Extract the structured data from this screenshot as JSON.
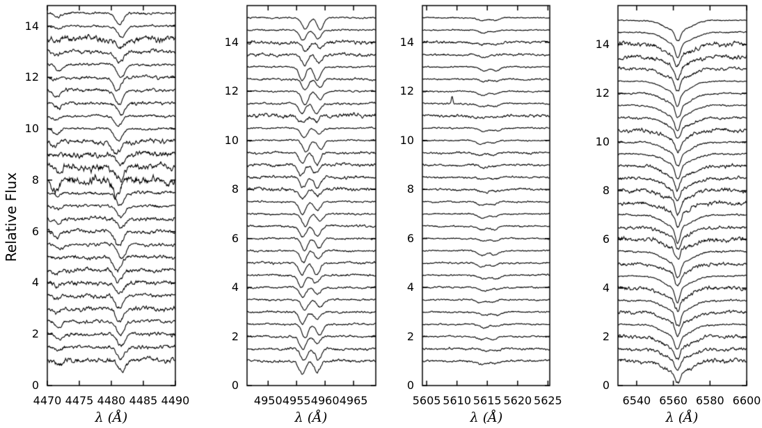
{
  "chart_data": {
    "type": "line",
    "title": "",
    "ylabel": "Relative Flux",
    "background": "#ffffff",
    "line_color": "#000000",
    "grid": false,
    "legend": "none",
    "description": "Four panels of vertically offset normalized stellar spectra (relative flux vs wavelength in Angstroms)",
    "panels": [
      {
        "xlabel": "λ (Å)",
        "xlim": [
          4470,
          4490
        ],
        "xticks": [
          4470,
          4475,
          4480,
          4485,
          4490
        ],
        "ylim": [
          0,
          14.8
        ],
        "yticks": [
          0,
          2,
          4,
          6,
          8,
          10,
          12,
          14
        ],
        "kind": "lines",
        "shift_scale": 0.9,
        "lines": [
          {
            "c": 4481.2,
            "w": 0.6,
            "rel": 1.0
          },
          {
            "c": 4471.5,
            "w": 0.5,
            "rel": 0.35
          }
        ],
        "spectra": [
          {
            "o": 14.5,
            "n": 0.03,
            "d": 0.4
          },
          {
            "o": 14.0,
            "n": 0.028,
            "d": 0.45
          },
          {
            "o": 13.5,
            "n": 0.085,
            "d": 0.35
          },
          {
            "o": 13.0,
            "n": 0.055,
            "d": 0.4
          },
          {
            "o": 12.5,
            "n": 0.035,
            "d": 0.5
          },
          {
            "o": 12.0,
            "n": 0.045,
            "d": 0.55
          },
          {
            "o": 11.5,
            "n": 0.045,
            "d": 0.55
          },
          {
            "o": 11.0,
            "n": 0.05,
            "d": 0.45
          },
          {
            "o": 10.5,
            "n": 0.032,
            "d": 0.4
          },
          {
            "o": 10.0,
            "n": 0.032,
            "d": 0.45
          },
          {
            "o": 9.5,
            "n": 0.065,
            "d": 0.45
          },
          {
            "o": 9.0,
            "n": 0.08,
            "d": 0.4
          },
          {
            "o": 8.5,
            "n": 0.095,
            "d": 0.45
          },
          {
            "o": 8.0,
            "n": 0.12,
            "d": 0.65
          },
          {
            "o": 7.5,
            "n": 0.045,
            "d": 0.5
          },
          {
            "o": 7.0,
            "n": 0.038,
            "d": 0.45
          },
          {
            "o": 6.5,
            "n": 0.055,
            "d": 0.4
          },
          {
            "o": 6.0,
            "n": 0.055,
            "d": 0.5
          },
          {
            "o": 5.5,
            "n": 0.045,
            "d": 0.55
          },
          {
            "o": 5.0,
            "n": 0.055,
            "d": 0.5
          },
          {
            "o": 4.5,
            "n": 0.06,
            "d": 0.5
          },
          {
            "o": 4.0,
            "n": 0.06,
            "d": 0.45
          },
          {
            "o": 3.5,
            "n": 0.055,
            "d": 0.5
          },
          {
            "o": 3.0,
            "n": 0.06,
            "d": 0.55
          },
          {
            "o": 2.5,
            "n": 0.045,
            "d": 0.55
          },
          {
            "o": 2.0,
            "n": 0.045,
            "d": 0.45
          },
          {
            "o": 1.5,
            "n": 0.05,
            "d": 0.45
          },
          {
            "o": 1.0,
            "n": 0.07,
            "d": 0.5
          }
        ]
      },
      {
        "xlabel": "λ (Å)",
        "xlim": [
          4946.3,
          4968.9
        ],
        "xticks": [
          4950,
          4955,
          4960,
          4965
        ],
        "ylim": [
          0,
          15.5
        ],
        "yticks": [
          0,
          2,
          4,
          6,
          8,
          10,
          12,
          14
        ],
        "kind": "lines",
        "shift_scale": 0.9,
        "lines": [
          {
            "c": 4956.2,
            "w": 0.55,
            "rel": 1.0
          },
          {
            "c": 4958.8,
            "w": 0.55,
            "rel": 0.8
          }
        ],
        "spectra": [
          {
            "o": 15.0,
            "n": 0.02,
            "d": 0.45
          },
          {
            "o": 14.5,
            "n": 0.02,
            "d": 0.4
          },
          {
            "o": 14.0,
            "n": 0.05,
            "d": 0.35
          },
          {
            "o": 13.5,
            "n": 0.045,
            "d": 0.4
          },
          {
            "o": 13.0,
            "n": 0.022,
            "d": 0.55
          },
          {
            "o": 12.5,
            "n": 0.03,
            "d": 0.45
          },
          {
            "o": 12.0,
            "n": 0.022,
            "d": 0.55
          },
          {
            "o": 11.5,
            "n": 0.03,
            "d": 0.4
          },
          {
            "o": 11.0,
            "n": 0.06,
            "d": 0.25
          },
          {
            "o": 10.5,
            "n": 0.022,
            "d": 0.4
          },
          {
            "o": 10.0,
            "n": 0.022,
            "d": 0.45
          },
          {
            "o": 9.5,
            "n": 0.035,
            "d": 0.45
          },
          {
            "o": 9.0,
            "n": 0.045,
            "d": 0.4
          },
          {
            "o": 8.5,
            "n": 0.04,
            "d": 0.45
          },
          {
            "o": 8.0,
            "n": 0.05,
            "d": 0.35
          },
          {
            "o": 7.5,
            "n": 0.025,
            "d": 0.5
          },
          {
            "o": 7.0,
            "n": 0.025,
            "d": 0.5
          },
          {
            "o": 6.5,
            "n": 0.03,
            "d": 0.45
          },
          {
            "o": 6.0,
            "n": 0.025,
            "d": 0.5
          },
          {
            "o": 5.5,
            "n": 0.025,
            "d": 0.5
          },
          {
            "o": 5.0,
            "n": 0.03,
            "d": 0.45
          },
          {
            "o": 4.5,
            "n": 0.03,
            "d": 0.5
          },
          {
            "o": 4.0,
            "n": 0.028,
            "d": 0.4
          },
          {
            "o": 3.5,
            "n": 0.028,
            "d": 0.4
          },
          {
            "o": 3.0,
            "n": 0.03,
            "d": 0.5
          },
          {
            "o": 2.5,
            "n": 0.025,
            "d": 0.55
          },
          {
            "o": 2.0,
            "n": 0.03,
            "d": 0.5
          },
          {
            "o": 1.5,
            "n": 0.035,
            "d": 0.5
          },
          {
            "o": 1.0,
            "n": 0.04,
            "d": 0.5
          }
        ]
      },
      {
        "xlabel": "λ (Å)",
        "xlim": [
          5604.3,
          5625.3
        ],
        "xticks": [
          5605,
          5610,
          5615,
          5620,
          5625
        ],
        "ylim": [
          0,
          15.5
        ],
        "yticks": [
          0,
          2,
          4,
          6,
          8,
          10,
          12,
          14
        ],
        "kind": "lines",
        "shift_scale": 0.9,
        "lines": [
          {
            "c": 5614.2,
            "w": 0.7,
            "rel": 1.0
          },
          {
            "c": 5616.2,
            "w": 0.6,
            "rel": 0.7
          }
        ],
        "spectra": [
          {
            "o": 15.0,
            "n": 0.015,
            "d": 0.12
          },
          {
            "o": 14.5,
            "n": 0.015,
            "d": 0.12
          },
          {
            "o": 14.0,
            "n": 0.035,
            "d": 0.1
          },
          {
            "o": 13.5,
            "n": 0.03,
            "d": 0.1
          },
          {
            "o": 13.0,
            "n": 0.018,
            "d": 0.18
          },
          {
            "o": 12.5,
            "n": 0.022,
            "d": 0.12
          },
          {
            "o": 12.0,
            "n": 0.018,
            "d": 0.18
          },
          {
            "o": 11.5,
            "n": 0.022,
            "d": 0.12,
            "spike": {
              "c": 5609.2,
              "h": 0.3,
              "w": 0.13
            }
          },
          {
            "o": 11.0,
            "n": 0.04,
            "d": 0.08
          },
          {
            "o": 10.5,
            "n": 0.02,
            "d": 0.12
          },
          {
            "o": 10.0,
            "n": 0.018,
            "d": 0.15
          },
          {
            "o": 9.5,
            "n": 0.028,
            "d": 0.12
          },
          {
            "o": 9.0,
            "n": 0.03,
            "d": 0.1
          },
          {
            "o": 8.5,
            "n": 0.025,
            "d": 0.12
          },
          {
            "o": 8.0,
            "n": 0.03,
            "d": 0.12
          },
          {
            "o": 7.5,
            "n": 0.02,
            "d": 0.15
          },
          {
            "o": 7.0,
            "n": 0.018,
            "d": 0.15
          },
          {
            "o": 6.5,
            "n": 0.02,
            "d": 0.15
          },
          {
            "o": 6.0,
            "n": 0.018,
            "d": 0.12
          },
          {
            "o": 5.5,
            "n": 0.018,
            "d": 0.18
          },
          {
            "o": 5.0,
            "n": 0.02,
            "d": 0.15
          },
          {
            "o": 4.5,
            "n": 0.022,
            "d": 0.15
          },
          {
            "o": 4.0,
            "n": 0.022,
            "d": 0.12
          },
          {
            "o": 3.5,
            "n": 0.02,
            "d": 0.12
          },
          {
            "o": 3.0,
            "n": 0.022,
            "d": 0.15
          },
          {
            "o": 2.5,
            "n": 0.02,
            "d": 0.15
          },
          {
            "o": 2.0,
            "n": 0.022,
            "d": 0.12
          },
          {
            "o": 1.5,
            "n": 0.03,
            "d": 0.1
          },
          {
            "o": 1.0,
            "n": 0.03,
            "d": 0.15
          }
        ]
      },
      {
        "xlabel": "λ (Å)",
        "xlim": [
          6529.8,
          6600
        ],
        "xticks": [
          6540,
          6560,
          6580,
          6600
        ],
        "ylim": [
          0,
          15.6
        ],
        "yticks": [
          0,
          2,
          4,
          6,
          8,
          10,
          12,
          14
        ],
        "kind": "halpha",
        "shift_scale": 0.5,
        "line_center": 6562.3,
        "broad_width": 7,
        "core_width": 1.3,
        "em_width": 0.55,
        "spectra": [
          {
            "o": 15.0,
            "n": 0.018,
            "d": 0.5,
            "b": 0.45,
            "e": 0.12
          },
          {
            "o": 14.5,
            "n": 0.018,
            "d": 0.55,
            "b": 0.5,
            "e": 0
          },
          {
            "o": 14.0,
            "n": 0.065,
            "d": 0.5,
            "b": 0.45,
            "e": 0.1
          },
          {
            "o": 13.5,
            "n": 0.06,
            "d": 0.6,
            "b": 0.45,
            "e": 0.15
          },
          {
            "o": 13.0,
            "n": 0.045,
            "d": 0.6,
            "b": 0.4,
            "e": 0.12
          },
          {
            "o": 12.5,
            "n": 0.018,
            "d": 0.55,
            "b": 0.5,
            "e": 0
          },
          {
            "o": 12.0,
            "n": 0.025,
            "d": 0.6,
            "b": 0.5,
            "e": 0.12
          },
          {
            "o": 11.5,
            "n": 0.022,
            "d": 0.55,
            "b": 0.5,
            "e": 0
          },
          {
            "o": 11.0,
            "n": 0.035,
            "d": 0.55,
            "b": 0.45,
            "e": 0.12
          },
          {
            "o": 10.5,
            "n": 0.06,
            "d": 0.5,
            "b": 0.45,
            "e": 0
          },
          {
            "o": 10.0,
            "n": 0.025,
            "d": 0.6,
            "b": 0.5,
            "e": 0.12
          },
          {
            "o": 9.5,
            "n": 0.025,
            "d": 0.65,
            "b": 0.45,
            "e": 0.12
          },
          {
            "o": 9.0,
            "n": 0.05,
            "d": 0.55,
            "b": 0.45,
            "e": 0
          },
          {
            "o": 8.5,
            "n": 0.05,
            "d": 0.6,
            "b": 0.45,
            "e": 0.15
          },
          {
            "o": 8.0,
            "n": 0.06,
            "d": 0.55,
            "b": 0.4,
            "e": 0
          },
          {
            "o": 7.5,
            "n": 0.06,
            "d": 0.6,
            "b": 0.45,
            "e": 0.15
          },
          {
            "o": 7.0,
            "n": 0.025,
            "d": 0.65,
            "b": 0.5,
            "e": 0
          },
          {
            "o": 6.5,
            "n": 0.045,
            "d": 0.55,
            "b": 0.45,
            "e": 0.12
          },
          {
            "o": 6.0,
            "n": 0.065,
            "d": 0.5,
            "b": 0.4,
            "e": 0
          },
          {
            "o": 5.5,
            "n": 0.025,
            "d": 0.7,
            "b": 0.5,
            "e": 0.15
          },
          {
            "o": 5.0,
            "n": 0.05,
            "d": 0.55,
            "b": 0.45,
            "e": 0.12
          },
          {
            "o": 4.5,
            "n": 0.018,
            "d": 0.6,
            "b": 0.5,
            "e": 0
          },
          {
            "o": 4.0,
            "n": 0.06,
            "d": 0.55,
            "b": 0.45,
            "e": 0.12
          },
          {
            "o": 3.5,
            "n": 0.025,
            "d": 0.7,
            "b": 0.5,
            "e": 0.15
          },
          {
            "o": 3.0,
            "n": 0.045,
            "d": 0.55,
            "b": 0.45,
            "e": 0
          },
          {
            "o": 2.5,
            "n": 0.022,
            "d": 0.6,
            "b": 0.5,
            "e": 0.12
          },
          {
            "o": 2.0,
            "n": 0.05,
            "d": 0.6,
            "b": 0.45,
            "e": 0.15
          },
          {
            "o": 1.5,
            "n": 0.05,
            "d": 0.55,
            "b": 0.45,
            "e": 0.12
          },
          {
            "o": 1.0,
            "n": 0.06,
            "d": 0.6,
            "b": 0.45,
            "e": 0.15
          }
        ]
      }
    ]
  }
}
